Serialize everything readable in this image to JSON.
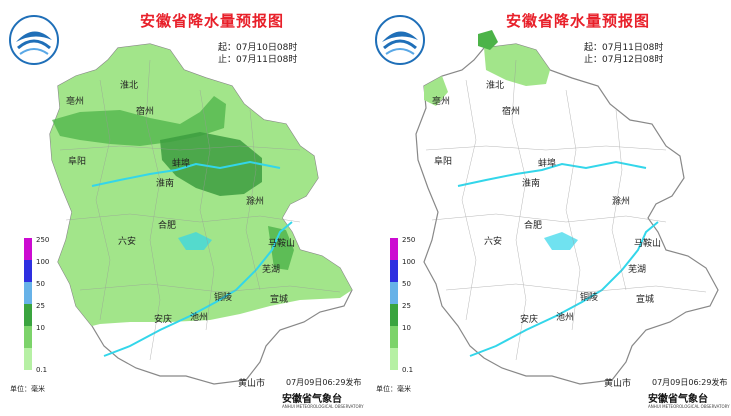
{
  "colors": {
    "rain_light": "#a2e58a",
    "rain_mid": "#4cb348",
    "outline": "#888888",
    "river": "#33d6ea",
    "title": "#e8202a"
  },
  "legend": [
    {
      "label": "250",
      "color": "#cc0bd1"
    },
    {
      "label": "100",
      "color": "#2e2fe0"
    },
    {
      "label": "50",
      "color": "#67b2e8"
    },
    {
      "label": "25",
      "color": "#3aa43f"
    },
    {
      "label": "10",
      "color": "#7cd36a"
    },
    {
      "label": "0.1",
      "color": "#b6f0a4"
    }
  ],
  "unit": "单位：毫米",
  "org": "安徽省气象台",
  "org_en": "ANHUI METEOROLOGICAL OBSERVATORY",
  "panels": [
    {
      "title": "安徽省降水量预报图",
      "start": "起：07月10日08时",
      "end": "止：07月11日08时",
      "release": "07月09日06:29发布"
    },
    {
      "title": "安徽省降水量预报图",
      "start": "起：07月11日08时",
      "end": "止：07月12日08时",
      "release": "07月09日06:29发布"
    }
  ],
  "cities": [
    "淮北",
    "宿州",
    "亳州",
    "阜阳",
    "蚌埠",
    "淮南",
    "滁州",
    "合肥",
    "六安",
    "马鞍山",
    "芜湖",
    "铜陵",
    "安庆",
    "池州",
    "宣城",
    "黄山市"
  ]
}
